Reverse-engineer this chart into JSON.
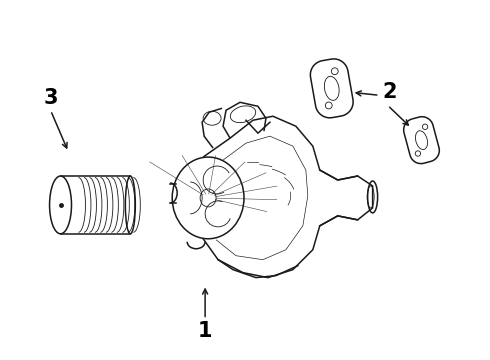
{
  "background_color": "#ffffff",
  "line_color": "#1a1a1a",
  "label_color": "#000000",
  "figsize": [
    4.9,
    3.6
  ],
  "dpi": 100,
  "labels": {
    "1": [
      2.05,
      0.28
    ],
    "2": [
      3.9,
      2.68
    ],
    "3": [
      0.5,
      2.62
    ]
  },
  "label_fontsize": 15,
  "label_fontweight": "bold"
}
